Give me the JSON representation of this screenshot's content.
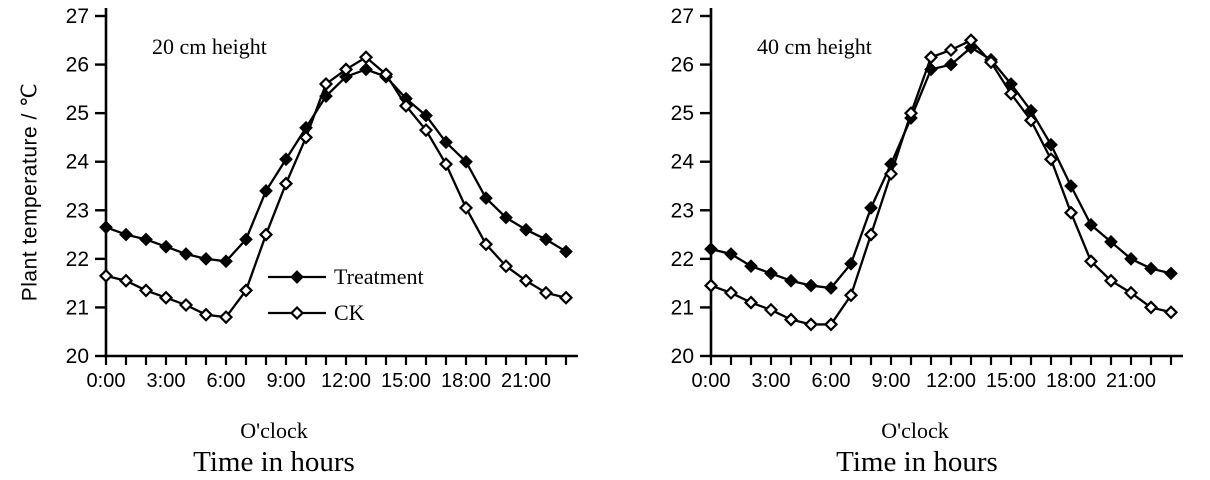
{
  "page": {
    "background": "#ffffff",
    "ink": "#000000"
  },
  "chart_data": [
    {
      "id": "20cm",
      "type": "line",
      "panel_label": "20 cm height",
      "ylabel": "Plant temperature / ℃",
      "xlabel": "O'clock",
      "caption": "Time in hours",
      "ylim": [
        20,
        27
      ],
      "yticks": [
        20,
        21,
        22,
        23,
        24,
        25,
        26,
        27
      ],
      "x_hours": [
        0,
        1,
        2,
        3,
        4,
        5,
        6,
        7,
        8,
        9,
        10,
        11,
        12,
        13,
        14,
        15,
        16,
        17,
        18,
        19,
        20,
        21,
        22,
        23
      ],
      "xticks": [
        {
          "h": 0,
          "label": "0:00"
        },
        {
          "h": 3,
          "label": "3:00"
        },
        {
          "h": 6,
          "label": "6:00"
        },
        {
          "h": 9,
          "label": "9:00"
        },
        {
          "h": 12,
          "label": "12:00"
        },
        {
          "h": 15,
          "label": "15:00"
        },
        {
          "h": 18,
          "label": "18:00"
        },
        {
          "h": 21,
          "label": "21:00"
        }
      ],
      "grid": false,
      "legend": {
        "visible": true,
        "position": "inside-center-left",
        "entries": [
          "Treatment",
          "CK"
        ]
      },
      "colors": {
        "line": "#000000",
        "open_marker_fill": "#ffffff"
      },
      "series": [
        {
          "name": "Treatment",
          "marker": "filled-diamond",
          "values": [
            22.65,
            22.5,
            22.4,
            22.25,
            22.1,
            22.0,
            21.95,
            22.4,
            23.4,
            24.05,
            24.7,
            25.35,
            25.75,
            25.9,
            25.75,
            25.3,
            24.95,
            24.4,
            24.0,
            23.25,
            22.85,
            22.6,
            22.4,
            22.15
          ]
        },
        {
          "name": "CK",
          "marker": "open-diamond",
          "values": [
            21.65,
            21.55,
            21.35,
            21.2,
            21.05,
            20.85,
            20.8,
            21.35,
            22.5,
            23.55,
            24.5,
            25.6,
            25.9,
            26.15,
            25.8,
            25.15,
            24.65,
            23.95,
            23.05,
            22.3,
            21.85,
            21.55,
            21.3,
            21.2
          ]
        }
      ]
    },
    {
      "id": "40cm",
      "type": "line",
      "panel_label": "40 cm height",
      "ylabel": "",
      "xlabel": "O'clock",
      "caption": "Time in hours",
      "ylim": [
        20,
        27
      ],
      "yticks": [
        20,
        21,
        22,
        23,
        24,
        25,
        26,
        27
      ],
      "x_hours": [
        0,
        1,
        2,
        3,
        4,
        5,
        6,
        7,
        8,
        9,
        10,
        11,
        12,
        13,
        14,
        15,
        16,
        17,
        18,
        19,
        20,
        21,
        22,
        23
      ],
      "xticks": [
        {
          "h": 0,
          "label": "0:00"
        },
        {
          "h": 3,
          "label": "3:00"
        },
        {
          "h": 6,
          "label": "6:00"
        },
        {
          "h": 9,
          "label": "9:00"
        },
        {
          "h": 12,
          "label": "12:00"
        },
        {
          "h": 15,
          "label": "15:00"
        },
        {
          "h": 18,
          "label": "18:00"
        },
        {
          "h": 21,
          "label": "21:00"
        }
      ],
      "grid": false,
      "legend": {
        "visible": false,
        "entries": []
      },
      "colors": {
        "line": "#000000",
        "open_marker_fill": "#ffffff"
      },
      "series": [
        {
          "name": "Treatment",
          "marker": "filled-diamond",
          "values": [
            22.2,
            22.1,
            21.85,
            21.7,
            21.55,
            21.45,
            21.4,
            21.9,
            23.05,
            23.95,
            24.9,
            25.9,
            26.0,
            26.35,
            26.1,
            25.6,
            25.05,
            24.35,
            23.5,
            22.7,
            22.35,
            22.0,
            21.8,
            21.7
          ]
        },
        {
          "name": "CK",
          "marker": "open-diamond",
          "values": [
            21.45,
            21.3,
            21.1,
            20.95,
            20.75,
            20.65,
            20.65,
            21.25,
            22.5,
            23.75,
            25.0,
            26.15,
            26.3,
            26.5,
            26.05,
            25.4,
            24.85,
            24.05,
            22.95,
            21.95,
            21.55,
            21.3,
            21.0,
            20.9
          ]
        }
      ]
    }
  ]
}
